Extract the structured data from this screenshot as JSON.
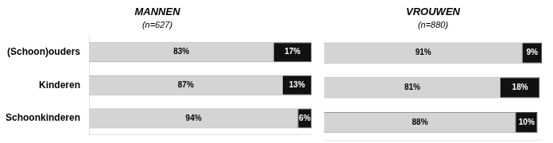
{
  "chart_data": [
    {
      "type": "bar",
      "orientation": "horizontal",
      "stacked": true,
      "title": "MANNEN",
      "subtitle": "(n=627)",
      "categories": [
        "(Schoon)ouders",
        "Kinderen",
        "Schoonkinderen"
      ],
      "series": [
        {
          "color": "#d4d4d4",
          "values": [
            83,
            87,
            94
          ],
          "value_labels": [
            "83%",
            "87%",
            "94%"
          ]
        },
        {
          "color": "#111111",
          "values": [
            17,
            13,
            6
          ],
          "value_labels": [
            "17%",
            "13%",
            "6%"
          ]
        }
      ],
      "xlim": [
        0,
        100
      ],
      "grid": false,
      "data_labels": true,
      "tick_labels": "y"
    },
    {
      "type": "bar",
      "orientation": "horizontal",
      "stacked": true,
      "title": "VROUWEN",
      "subtitle": "(n=880)",
      "categories": [
        "(Schoon)ouders",
        "Kinderen",
        "Schoonkinderen"
      ],
      "series": [
        {
          "color": "#d4d4d4",
          "values": [
            91,
            81,
            88
          ],
          "value_labels": [
            "91%",
            "81%",
            "88%"
          ]
        },
        {
          "color": "#111111",
          "values": [
            9,
            18,
            10
          ],
          "value_labels": [
            "9%",
            "18%",
            "10%"
          ]
        }
      ],
      "xlim": [
        0,
        100
      ],
      "grid": false,
      "data_labels": true,
      "tick_labels": false
    }
  ]
}
